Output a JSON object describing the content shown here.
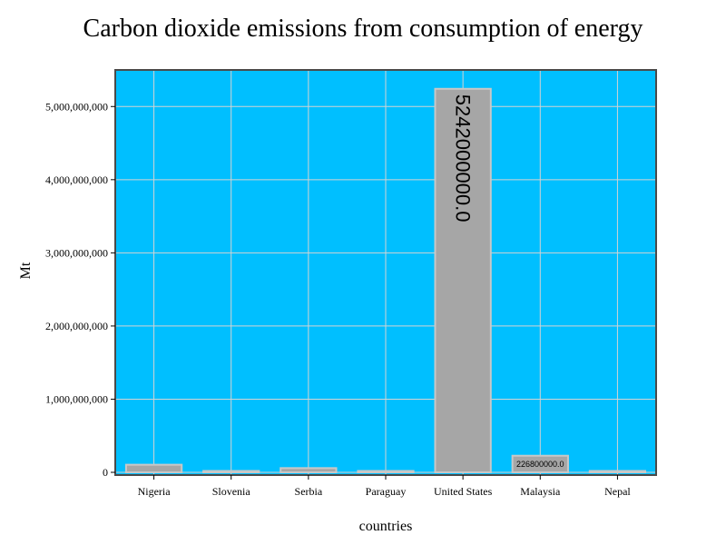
{
  "chart_data": {
    "type": "bar",
    "title": "Carbon dioxide emissions from consumption of energy",
    "xlabel": "countries",
    "ylabel": "Mt",
    "categories": [
      "Nigeria",
      "Slovenia",
      "Serbia",
      "Paraguay",
      "United States",
      "Malaysia",
      "Nepal"
    ],
    "values": [
      104000000,
      16000000,
      58000000,
      7000000,
      5242000000,
      226800000,
      12000000
    ],
    "data_labels": [
      "",
      "",
      "",
      "",
      "5242000000.0",
      "226800000.0",
      ""
    ],
    "ylim": [
      0,
      5500000000
    ],
    "yticks": [
      0,
      1000000000,
      2000000000,
      3000000000,
      4000000000,
      5000000000
    ],
    "ytick_labels": [
      "0",
      "1,000,000,000",
      "2,000,000,000",
      "3,000,000,000",
      "4,000,000,000",
      "5,000,000,000"
    ],
    "grid": true,
    "legend": "none",
    "colors": {
      "plot_background": "#00bfff",
      "bar_fill": "#a6a6a6",
      "bar_edge": "#c8c8c8",
      "grid": "#d3d3d3",
      "frame": "#4a4a4a"
    }
  }
}
